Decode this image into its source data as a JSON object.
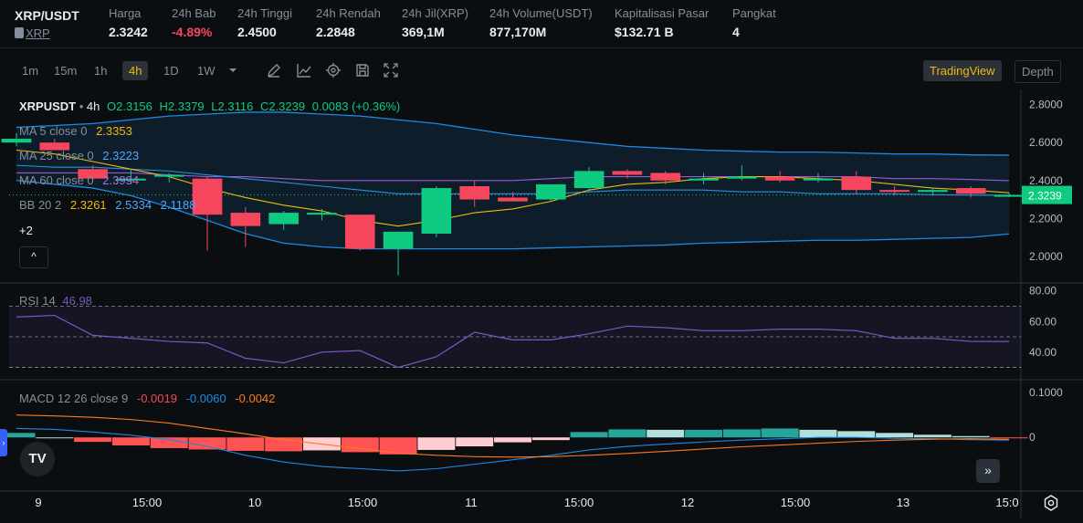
{
  "header": {
    "pair": "XRP/USDT",
    "coin": "XRP",
    "stats": [
      {
        "label": "Harga",
        "value": "2.3242",
        "neg": false
      },
      {
        "label": "24h Bab",
        "value": "-4.89%",
        "neg": true
      },
      {
        "label": "24h Tinggi",
        "value": "2.4500",
        "neg": false
      },
      {
        "label": "24h Rendah",
        "value": "2.2848",
        "neg": false
      },
      {
        "label": "24h Jil(XRP)",
        "value": "369,1M",
        "neg": false
      },
      {
        "label": "24h Volume(USDT)",
        "value": "877,170M",
        "neg": false
      },
      {
        "label": "Kapitalisasi Pasar",
        "value": "$132.71 B",
        "neg": false
      },
      {
        "label": "Pangkat",
        "value": "4",
        "neg": false
      }
    ]
  },
  "toolbar": {
    "intervals": [
      "1m",
      "15m",
      "1h",
      "4h",
      "1D",
      "1W"
    ],
    "active_interval": "4h",
    "tradingview_label": "TradingView",
    "depth_label": "Depth"
  },
  "legend": {
    "title": "XRPUSDT",
    "interval": "4h",
    "o": "O2.3156",
    "h": "H2.3379",
    "l": "L2.3116",
    "c": "C2.3239",
    "change": "0.0083 (+0.36%)",
    "ma5_label": "MA 5 close 0",
    "ma5_value": "2.3353",
    "ma25_label": "MA 25 close 0",
    "ma25_value": "2.3223",
    "ma60_label": "MA 60 close 0",
    "ma60_value": "2.3994",
    "bb_label": "BB 20 2",
    "bb_mid": "2.3261",
    "bb_up": "2.5334",
    "bb_low": "2.1188",
    "more": "+2",
    "collapse": "^",
    "rsi_label": "RSI 14",
    "rsi_value": "46.98",
    "macd_label": "MACD 12 26 close 9",
    "macd_v1": "-0.0019",
    "macd_v2": "-0.0060",
    "macd_v3": "-0.0042"
  },
  "price_axis": [
    "2.8000",
    "2.6000",
    "2.4000",
    "2.2000",
    "2.0000"
  ],
  "last_price": "2.3239",
  "rsi_axis": [
    "80.00",
    "60.00",
    "40.00"
  ],
  "macd_axis": [
    "0.1000",
    "0"
  ],
  "time_axis": [
    "9",
    "15:00",
    "10",
    "15:00",
    "11",
    "15:00",
    "12",
    "15:00",
    "13",
    "15:0"
  ],
  "tv_logo": "TV",
  "forward_label": "»",
  "colors": {
    "up": "#0ecb81",
    "down": "#f6465d",
    "accent": "#f0b90b",
    "bb": "#1e88e5",
    "rsi": "#7e57c2"
  },
  "chart_data": {
    "type": "candlestick",
    "candles": [
      {
        "o": 2.6,
        "h": 2.65,
        "l": 2.58,
        "c": 2.62
      },
      {
        "o": 2.6,
        "h": 2.62,
        "l": 2.56,
        "c": 2.56
      },
      {
        "o": 2.46,
        "h": 2.48,
        "l": 2.4,
        "c": 2.41
      },
      {
        "o": 2.4,
        "h": 2.46,
        "l": 2.38,
        "c": 2.41
      },
      {
        "o": 2.42,
        "h": 2.44,
        "l": 2.39,
        "c": 2.43
      },
      {
        "o": 2.41,
        "h": 2.42,
        "l": 2.03,
        "c": 2.22
      },
      {
        "o": 2.23,
        "h": 2.26,
        "l": 2.05,
        "c": 2.16
      },
      {
        "o": 2.17,
        "h": 2.24,
        "l": 2.14,
        "c": 2.23
      },
      {
        "o": 2.22,
        "h": 2.25,
        "l": 2.19,
        "c": 2.23
      },
      {
        "o": 2.22,
        "h": 2.22,
        "l": 2.03,
        "c": 2.04
      },
      {
        "o": 2.04,
        "h": 2.13,
        "l": 1.9,
        "c": 2.13
      },
      {
        "o": 2.12,
        "h": 2.37,
        "l": 2.1,
        "c": 2.36
      },
      {
        "o": 2.37,
        "h": 2.4,
        "l": 2.26,
        "c": 2.3
      },
      {
        "o": 2.31,
        "h": 2.34,
        "l": 2.29,
        "c": 2.29
      },
      {
        "o": 2.3,
        "h": 2.38,
        "l": 2.29,
        "c": 2.38
      },
      {
        "o": 2.36,
        "h": 2.47,
        "l": 2.34,
        "c": 2.45
      },
      {
        "o": 2.45,
        "h": 2.46,
        "l": 2.41,
        "c": 2.43
      },
      {
        "o": 2.44,
        "h": 2.45,
        "l": 2.38,
        "c": 2.4
      },
      {
        "o": 2.4,
        "h": 2.44,
        "l": 2.38,
        "c": 2.41
      },
      {
        "o": 2.41,
        "h": 2.48,
        "l": 2.4,
        "c": 2.42
      },
      {
        "o": 2.42,
        "h": 2.45,
        "l": 2.39,
        "c": 2.4
      },
      {
        "o": 2.41,
        "h": 2.44,
        "l": 2.39,
        "c": 2.41
      },
      {
        "o": 2.42,
        "h": 2.45,
        "l": 2.33,
        "c": 2.35
      },
      {
        "o": 2.35,
        "h": 2.37,
        "l": 2.32,
        "c": 2.34
      },
      {
        "o": 2.34,
        "h": 2.36,
        "l": 2.32,
        "c": 2.35
      },
      {
        "o": 2.36,
        "h": 2.37,
        "l": 2.31,
        "c": 2.33
      },
      {
        "o": 2.3156,
        "h": 2.3379,
        "l": 2.3116,
        "c": 2.3239
      }
    ],
    "bb_upper": [
      2.68,
      2.69,
      2.7,
      2.72,
      2.74,
      2.75,
      2.76,
      2.76,
      2.75,
      2.74,
      2.72,
      2.7,
      2.67,
      2.64,
      2.62,
      2.6,
      2.58,
      2.57,
      2.56,
      2.555,
      2.55,
      2.55,
      2.545,
      2.54,
      2.54,
      2.535,
      2.5334
    ],
    "bb_lower": [
      2.4,
      2.38,
      2.36,
      2.32,
      2.26,
      2.19,
      2.12,
      2.07,
      2.05,
      2.04,
      2.04,
      2.04,
      2.04,
      2.04,
      2.045,
      2.05,
      2.055,
      2.06,
      2.07,
      2.075,
      2.08,
      2.085,
      2.085,
      2.09,
      2.095,
      2.1,
      2.1188
    ],
    "ma5": [
      2.56,
      2.54,
      2.5,
      2.46,
      2.42,
      2.36,
      2.31,
      2.27,
      2.24,
      2.19,
      2.16,
      2.19,
      2.23,
      2.25,
      2.29,
      2.35,
      2.38,
      2.39,
      2.41,
      2.42,
      2.42,
      2.41,
      2.4,
      2.38,
      2.36,
      2.35,
      2.3353
    ],
    "ma25": [
      2.48,
      2.47,
      2.47,
      2.46,
      2.45,
      2.43,
      2.41,
      2.39,
      2.37,
      2.35,
      2.33,
      2.33,
      2.33,
      2.33,
      2.33,
      2.34,
      2.35,
      2.35,
      2.35,
      2.34,
      2.34,
      2.33,
      2.33,
      2.33,
      2.325,
      2.323,
      2.3223
    ],
    "ma60": [
      2.44,
      2.44,
      2.44,
      2.44,
      2.43,
      2.42,
      2.42,
      2.41,
      2.4,
      2.4,
      2.4,
      2.4,
      2.4,
      2.4,
      2.41,
      2.42,
      2.42,
      2.42,
      2.42,
      2.42,
      2.42,
      2.42,
      2.42,
      2.41,
      2.41,
      2.405,
      2.3994
    ],
    "rsi": [
      63,
      64,
      51,
      49,
      47,
      46,
      36,
      33,
      40,
      41,
      30,
      37,
      53,
      48,
      48,
      52,
      57,
      56,
      54,
      54,
      55,
      55,
      54,
      49,
      49,
      47,
      46.98
    ],
    "macd_line": [
      0.02,
      0.018,
      0.012,
      0.005,
      -0.005,
      -0.02,
      -0.04,
      -0.055,
      -0.065,
      -0.07,
      -0.075,
      -0.07,
      -0.06,
      -0.05,
      -0.04,
      -0.028,
      -0.02,
      -0.015,
      -0.01,
      -0.006,
      -0.003,
      0.0,
      0.0,
      -0.002,
      -0.003,
      -0.005,
      -0.006
    ],
    "signal_line": [
      0.05,
      0.048,
      0.045,
      0.04,
      0.032,
      0.02,
      0.008,
      -0.005,
      -0.015,
      -0.025,
      -0.035,
      -0.04,
      -0.043,
      -0.044,
      -0.043,
      -0.04,
      -0.036,
      -0.031,
      -0.026,
      -0.021,
      -0.017,
      -0.013,
      -0.009,
      -0.006,
      -0.004,
      -0.003,
      -0.0042
    ],
    "histogram": [
      0.01,
      0.0,
      -0.01,
      -0.018,
      -0.024,
      -0.027,
      -0.03,
      -0.031,
      -0.029,
      -0.033,
      -0.038,
      -0.028,
      -0.02,
      -0.011,
      -0.006,
      0.012,
      0.018,
      0.017,
      0.017,
      0.018,
      0.02,
      0.017,
      0.014,
      0.01,
      0.006,
      0.003,
      -0.0019
    ]
  }
}
